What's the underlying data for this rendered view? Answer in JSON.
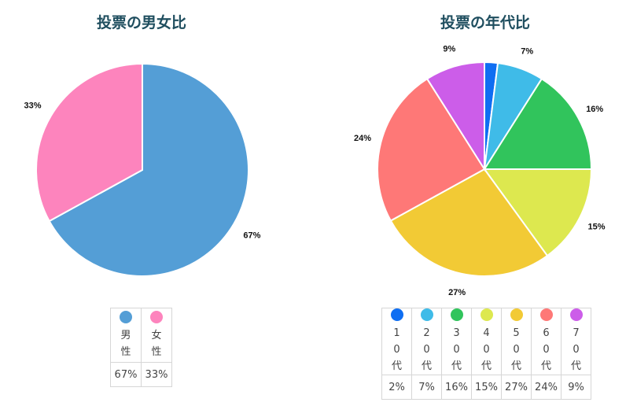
{
  "chart_data": [
    {
      "type": "pie",
      "title": "投票の男女比",
      "categories": [
        "男性",
        "女性"
      ],
      "values": [
        67,
        33
      ],
      "value_labels": [
        "67%",
        "33%"
      ],
      "colors": [
        "#549ed6",
        "#fd84bd"
      ]
    },
    {
      "type": "pie",
      "title": "投票の年代比",
      "categories": [
        "10代",
        "20代",
        "30代",
        "40代",
        "50代",
        "60代",
        "70代"
      ],
      "values": [
        2,
        7,
        16,
        15,
        27,
        24,
        9
      ],
      "value_labels": [
        "2%",
        "7%",
        "16%",
        "15%",
        "27%",
        "24%",
        "9%"
      ],
      "colors": [
        "#0f6ef2",
        "#3fbbe8",
        "#31c45c",
        "#dde84f",
        "#f2ca35",
        "#fe7877",
        "#cc5de9"
      ]
    }
  ]
}
